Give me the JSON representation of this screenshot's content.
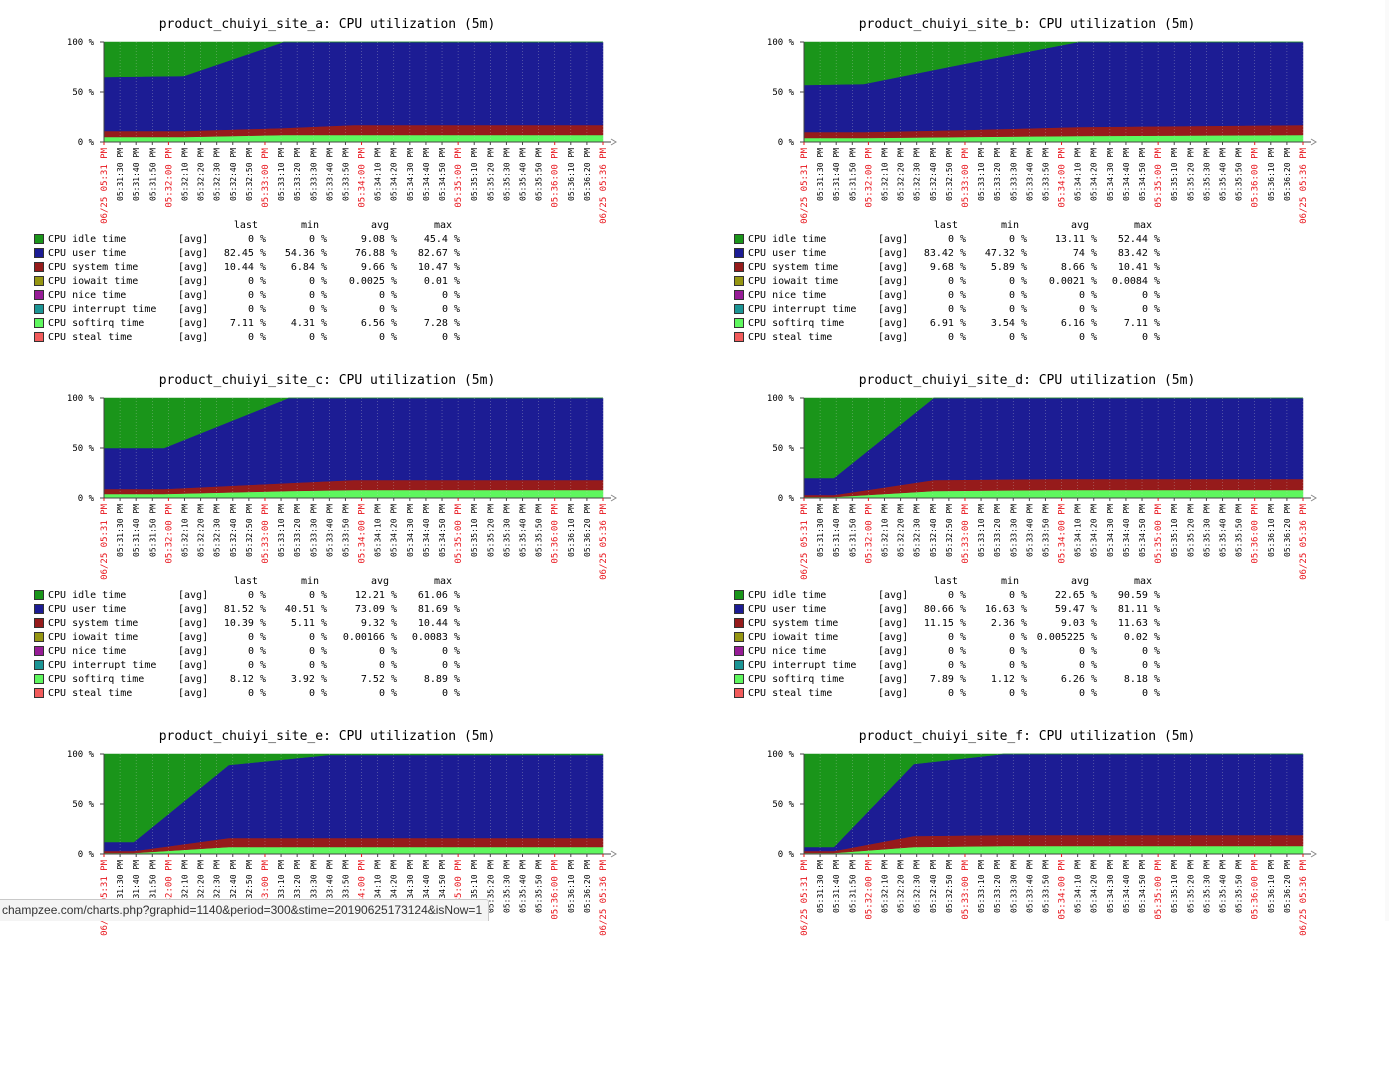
{
  "colors": {
    "idle": "#1a951a",
    "user": "#1c1c94",
    "system": "#961b1b",
    "iowait": "#969612",
    "nice": "#961c96",
    "interrupt": "#1b9595",
    "softirq": "#5ef75e",
    "steal": "#f25b5b",
    "major_tick": "#e8141b"
  },
  "y_ticks": [
    "100 %",
    "50 %",
    "0 %"
  ],
  "x_ticks": [
    {
      "label": "06/25 05:31 PM",
      "major": true
    },
    {
      "label": "05:31:30 PM",
      "major": false
    },
    {
      "label": "05:31:40 PM",
      "major": false
    },
    {
      "label": "05:31:50 PM",
      "major": false
    },
    {
      "label": "05:32:00 PM",
      "major": true
    },
    {
      "label": "05:32:10 PM",
      "major": false
    },
    {
      "label": "05:32:20 PM",
      "major": false
    },
    {
      "label": "05:32:30 PM",
      "major": false
    },
    {
      "label": "05:32:40 PM",
      "major": false
    },
    {
      "label": "05:32:50 PM",
      "major": false
    },
    {
      "label": "05:33:00 PM",
      "major": true
    },
    {
      "label": "05:33:10 PM",
      "major": false
    },
    {
      "label": "05:33:20 PM",
      "major": false
    },
    {
      "label": "05:33:30 PM",
      "major": false
    },
    {
      "label": "05:33:40 PM",
      "major": false
    },
    {
      "label": "05:33:50 PM",
      "major": false
    },
    {
      "label": "05:34:00 PM",
      "major": true
    },
    {
      "label": "05:34:10 PM",
      "major": false
    },
    {
      "label": "05:34:20 PM",
      "major": false
    },
    {
      "label": "05:34:30 PM",
      "major": false
    },
    {
      "label": "05:34:40 PM",
      "major": false
    },
    {
      "label": "05:34:50 PM",
      "major": false
    },
    {
      "label": "05:35:00 PM",
      "major": true
    },
    {
      "label": "05:35:10 PM",
      "major": false
    },
    {
      "label": "05:35:20 PM",
      "major": false
    },
    {
      "label": "05:35:30 PM",
      "major": false
    },
    {
      "label": "05:35:40 PM",
      "major": false
    },
    {
      "label": "05:35:50 PM",
      "major": false
    },
    {
      "label": "05:36:00 PM",
      "major": true
    },
    {
      "label": "05:36:10 PM",
      "major": false
    },
    {
      "label": "05:36:20 PM",
      "major": false
    },
    {
      "label": "06/25 05:36 PM",
      "major": true
    }
  ],
  "legend_header": {
    "last": "last",
    "min": "min",
    "avg": "avg",
    "max": "max"
  },
  "series_names": [
    "CPU idle time",
    "CPU user time",
    "CPU system time",
    "CPU iowait time",
    "CPU nice time",
    "CPU interrupt time",
    "CPU softirq time",
    "CPU steal time"
  ],
  "series_keys": [
    "idle",
    "user",
    "system",
    "iowait",
    "nice",
    "interrupt",
    "softirq",
    "steal"
  ],
  "series_fn": "[avg]",
  "status_url": "champzee.com/charts.php?graphid=1140&period=300&stime=20190625173124&isNow=1",
  "chart_data": [
    {
      "type": "area",
      "title": "product_chuiyi_site_a: CPU utilization (5m)",
      "ylim": [
        0,
        100
      ],
      "stack_x": [
        0,
        0.16,
        0.36,
        0.5,
        1
      ],
      "stack": {
        "softirq": [
          5,
          5,
          7,
          7,
          7
        ],
        "system": [
          6,
          6,
          7,
          10,
          10
        ],
        "user": [
          54,
          55,
          86,
          83,
          83
        ],
        "idle": [
          35,
          34,
          0,
          0,
          0
        ]
      },
      "stats": [
        {
          "last": "0 %",
          "min": "0 %",
          "avg": "9.08 %",
          "max": "45.4 %"
        },
        {
          "last": "82.45 %",
          "min": "54.36 %",
          "avg": "76.88 %",
          "max": "82.67 %"
        },
        {
          "last": "10.44 %",
          "min": "6.84 %",
          "avg": "9.66 %",
          "max": "10.47 %"
        },
        {
          "last": "0 %",
          "min": "0 %",
          "avg": "0.0025 %",
          "max": "0.01 %"
        },
        {
          "last": "0 %",
          "min": "0 %",
          "avg": "0 %",
          "max": "0 %"
        },
        {
          "last": "0 %",
          "min": "0 %",
          "avg": "0 %",
          "max": "0 %"
        },
        {
          "last": "7.11 %",
          "min": "4.31 %",
          "avg": "6.56 %",
          "max": "7.28 %"
        },
        {
          "last": "0 %",
          "min": "0 %",
          "avg": "0 %",
          "max": "0 %"
        }
      ]
    },
    {
      "type": "area",
      "title": "product_chuiyi_site_b: CPU utilization (5m)",
      "ylim": [
        0,
        100
      ],
      "stack_x": [
        0,
        0.12,
        0.32,
        0.55,
        1
      ],
      "stack": {
        "softirq": [
          4,
          4,
          5,
          6,
          7
        ],
        "system": [
          6,
          6,
          7,
          9,
          10
        ],
        "user": [
          47,
          48,
          66,
          85,
          83
        ],
        "idle": [
          43,
          42,
          22,
          0,
          0
        ]
      },
      "stats": [
        {
          "last": "0 %",
          "min": "0 %",
          "avg": "13.11 %",
          "max": "52.44 %"
        },
        {
          "last": "83.42 %",
          "min": "47.32 %",
          "avg": "74 %",
          "max": "83.42 %"
        },
        {
          "last": "9.68 %",
          "min": "5.89 %",
          "avg": "8.66 %",
          "max": "10.41 %"
        },
        {
          "last": "0 %",
          "min": "0 %",
          "avg": "0.0021 %",
          "max": "0.0084 %"
        },
        {
          "last": "0 %",
          "min": "0 %",
          "avg": "0 %",
          "max": "0 %"
        },
        {
          "last": "0 %",
          "min": "0 %",
          "avg": "0 %",
          "max": "0 %"
        },
        {
          "last": "6.91 %",
          "min": "3.54 %",
          "avg": "6.16 %",
          "max": "7.11 %"
        },
        {
          "last": "0 %",
          "min": "0 %",
          "avg": "0 %",
          "max": "0 %"
        }
      ]
    },
    {
      "type": "area",
      "title": "product_chuiyi_site_c: CPU utilization (5m)",
      "ylim": [
        0,
        100
      ],
      "stack_x": [
        0,
        0.12,
        0.37,
        0.5,
        1
      ],
      "stack": {
        "softirq": [
          4,
          4,
          7,
          8,
          8
        ],
        "system": [
          5,
          5,
          8,
          10,
          10
        ],
        "user": [
          41,
          41,
          85,
          82,
          82
        ],
        "idle": [
          50,
          50,
          0,
          0,
          0
        ]
      },
      "stats": [
        {
          "last": "0 %",
          "min": "0 %",
          "avg": "12.21 %",
          "max": "61.06 %"
        },
        {
          "last": "81.52 %",
          "min": "40.51 %",
          "avg": "73.09 %",
          "max": "81.69 %"
        },
        {
          "last": "10.39 %",
          "min": "5.11 %",
          "avg": "9.32 %",
          "max": "10.44 %"
        },
        {
          "last": "0 %",
          "min": "0 %",
          "avg": "0.00166 %",
          "max": "0.0083 %"
        },
        {
          "last": "0 %",
          "min": "0 %",
          "avg": "0 %",
          "max": "0 %"
        },
        {
          "last": "0 %",
          "min": "0 %",
          "avg": "0 %",
          "max": "0 %"
        },
        {
          "last": "8.12 %",
          "min": "3.92 %",
          "avg": "7.52 %",
          "max": "8.89 %"
        },
        {
          "last": "0 %",
          "min": "0 %",
          "avg": "0 %",
          "max": "0 %"
        }
      ]
    },
    {
      "type": "area",
      "title": "product_chuiyi_site_d: CPU utilization (5m)",
      "ylim": [
        0,
        100
      ],
      "stack_x": [
        0,
        0.06,
        0.26,
        0.5,
        1
      ],
      "stack": {
        "softirq": [
          1,
          1,
          7,
          8,
          8
        ],
        "system": [
          2,
          2,
          11,
          11,
          11
        ],
        "user": [
          17,
          17,
          82,
          81,
          81
        ],
        "idle": [
          80,
          80,
          0,
          0,
          0
        ]
      },
      "stats": [
        {
          "last": "0 %",
          "min": "0 %",
          "avg": "22.65 %",
          "max": "90.59 %"
        },
        {
          "last": "80.66 %",
          "min": "16.63 %",
          "avg": "59.47 %",
          "max": "81.11 %"
        },
        {
          "last": "11.15 %",
          "min": "2.36 %",
          "avg": "9.03 %",
          "max": "11.63 %"
        },
        {
          "last": "0 %",
          "min": "0 %",
          "avg": "0.005225 %",
          "max": "0.02 %"
        },
        {
          "last": "0 %",
          "min": "0 %",
          "avg": "0 %",
          "max": "0 %"
        },
        {
          "last": "0 %",
          "min": "0 %",
          "avg": "0 %",
          "max": "0 %"
        },
        {
          "last": "7.89 %",
          "min": "1.12 %",
          "avg": "6.26 %",
          "max": "8.18 %"
        },
        {
          "last": "0 %",
          "min": "0 %",
          "avg": "0 %",
          "max": "0 %"
        }
      ]
    },
    {
      "type": "area",
      "title": "product_chuiyi_site_e: CPU utilization (5m)",
      "ylim": [
        0,
        100
      ],
      "stack_x": [
        0,
        0.06,
        0.25,
        0.45,
        1
      ],
      "stack": {
        "softirq": [
          1,
          1,
          7,
          7,
          7
        ],
        "system": [
          2,
          2,
          9,
          9,
          9
        ],
        "user": [
          9,
          9,
          73,
          83,
          83
        ],
        "idle": [
          88,
          88,
          11,
          1,
          1
        ]
      },
      "stats": []
    },
    {
      "type": "area",
      "title": "product_chuiyi_site_f: CPU utilization (5m)",
      "ylim": [
        0,
        100
      ],
      "stack_x": [
        0,
        0.06,
        0.22,
        0.4,
        1
      ],
      "stack": {
        "softirq": [
          1,
          1,
          7,
          8,
          8
        ],
        "system": [
          2,
          2,
          11,
          11,
          11
        ],
        "user": [
          4,
          4,
          72,
          81,
          81
        ],
        "idle": [
          93,
          93,
          10,
          0,
          0
        ]
      },
      "stats": []
    }
  ]
}
